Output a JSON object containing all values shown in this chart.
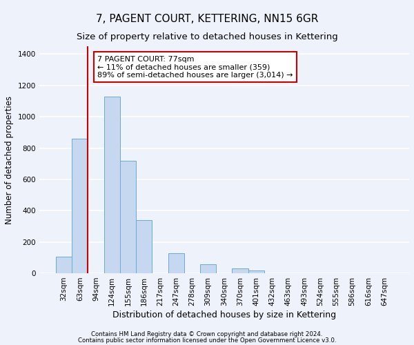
{
  "title": "7, PAGENT COURT, KETTERING, NN15 6GR",
  "subtitle": "Size of property relative to detached houses in Kettering",
  "xlabel": "Distribution of detached houses by size in Kettering",
  "ylabel": "Number of detached properties",
  "footnote1": "Contains HM Land Registry data © Crown copyright and database right 2024.",
  "footnote2": "Contains public sector information licensed under the Open Government Licence v3.0.",
  "bar_labels": [
    "32sqm",
    "63sqm",
    "94sqm",
    "124sqm",
    "155sqm",
    "186sqm",
    "217sqm",
    "247sqm",
    "278sqm",
    "309sqm",
    "340sqm",
    "370sqm",
    "401sqm",
    "432sqm",
    "463sqm",
    "493sqm",
    "524sqm",
    "555sqm",
    "586sqm",
    "616sqm",
    "647sqm"
  ],
  "bar_values": [
    105,
    860,
    0,
    1130,
    720,
    340,
    0,
    130,
    0,
    60,
    0,
    30,
    20,
    0,
    0,
    0,
    0,
    0,
    0,
    0,
    0
  ],
  "bar_color": "#c5d8f0",
  "bar_edge_color": "#6aaad4",
  "red_line_x": 1.5,
  "annotation_text": "7 PAGENT COURT: 77sqm\n← 11% of detached houses are smaller (359)\n89% of semi-detached houses are larger (3,014) →",
  "annotation_box_color": "#ffffff",
  "annotation_box_edge": "#cc0000",
  "red_line_color": "#cc0000",
  "ylim": [
    0,
    1450
  ],
  "yticks": [
    0,
    200,
    400,
    600,
    800,
    1000,
    1200,
    1400
  ],
  "background_color": "#eef2fa",
  "plot_bg_color": "#eef2fa",
  "grid_color": "#ffffff",
  "title_fontsize": 11,
  "subtitle_fontsize": 9.5,
  "tick_fontsize": 7.5,
  "ylabel_fontsize": 8.5,
  "xlabel_fontsize": 9
}
